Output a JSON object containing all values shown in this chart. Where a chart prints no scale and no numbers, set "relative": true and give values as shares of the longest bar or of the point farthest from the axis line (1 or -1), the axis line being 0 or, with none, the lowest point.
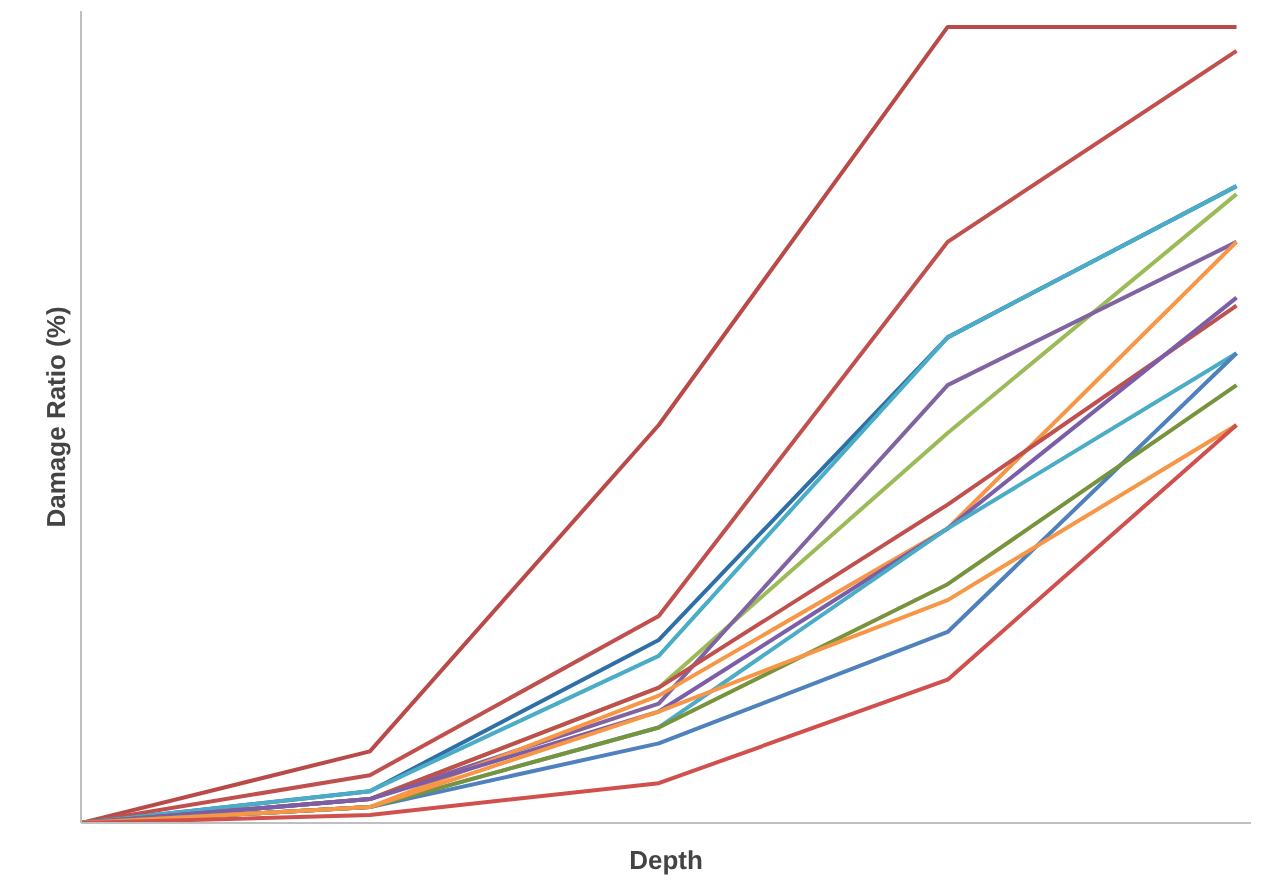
{
  "chart_data": {
    "type": "line",
    "relative": true,
    "xlabel": "Depth",
    "ylabel": "Damage Ratio (%)",
    "categories": [
      null,
      null,
      null,
      null,
      null
    ],
    "grid": false,
    "marker": "none",
    "line_style": "solid",
    "series": [
      {
        "color": "#b94a48",
        "values": [
          0,
          0.09,
          0.5,
          1.0,
          1.0
        ]
      },
      {
        "color": "#c0504d",
        "values": [
          0,
          0.06,
          0.26,
          0.73,
          0.97
        ]
      },
      {
        "color": "#2f6fa8",
        "values": [
          0,
          0.04,
          0.23,
          0.61,
          0.8
        ]
      },
      {
        "color": "#4aacc6",
        "values": [
          0,
          0.04,
          0.21,
          0.61,
          0.8
        ]
      },
      {
        "color": "#9bbb59",
        "values": [
          0,
          0.03,
          0.17,
          0.49,
          0.79
        ]
      },
      {
        "color": "#8064a2",
        "values": [
          0,
          0.03,
          0.15,
          0.55,
          0.73
        ]
      },
      {
        "color": "#f79646",
        "values": [
          0,
          0.02,
          0.16,
          0.37,
          0.73
        ]
      },
      {
        "color": "#c0504d",
        "values": [
          0,
          0.03,
          0.17,
          0.4,
          0.65
        ]
      },
      {
        "color": "#7b5ea7",
        "values": [
          0,
          0.03,
          0.14,
          0.37,
          0.66
        ]
      },
      {
        "color": "#4bacc6",
        "values": [
          0,
          0.02,
          0.12,
          0.37,
          0.59
        ]
      },
      {
        "color": "#4f81bd",
        "values": [
          0,
          0.02,
          0.1,
          0.24,
          0.59
        ]
      },
      {
        "color": "#77933c",
        "values": [
          0,
          0.02,
          0.12,
          0.3,
          0.55
        ]
      },
      {
        "color": "#f79646",
        "values": [
          0,
          0.02,
          0.14,
          0.28,
          0.5
        ]
      },
      {
        "color": "#d0504d",
        "values": [
          0,
          0.01,
          0.05,
          0.18,
          0.5
        ]
      }
    ]
  }
}
